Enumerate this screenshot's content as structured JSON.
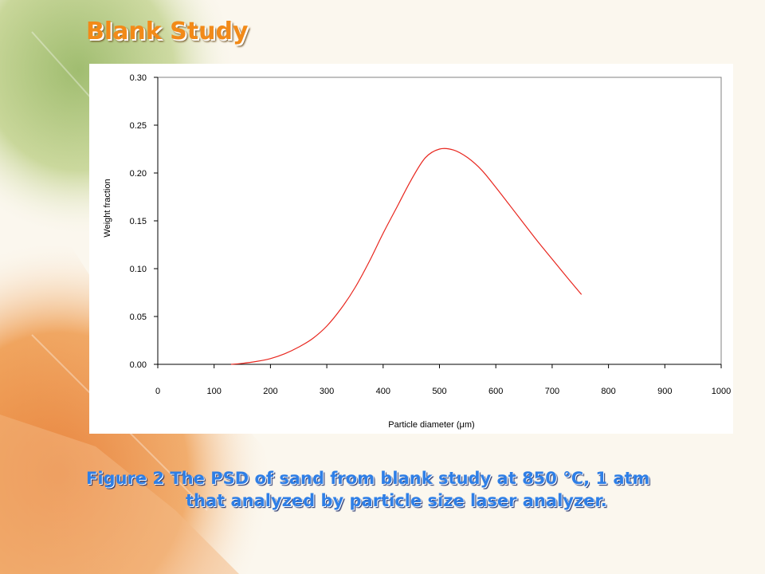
{
  "slide": {
    "title": "Blank Study",
    "caption_line1": "Figure 2 The PSD of sand from blank study at 850 °C, 1 atm",
    "caption_line2": "that analyzed by particle size laser analyzer."
  },
  "colors": {
    "title": "#f28a18",
    "caption": "#2f7fe6",
    "line": "#e8261e",
    "axis": "#000000"
  },
  "chart_data": {
    "type": "line",
    "title": "",
    "xlabel": "Particle diameter (μm)",
    "ylabel": "Weight fraction",
    "xlim": [
      0,
      1000
    ],
    "ylim": [
      0,
      0.3
    ],
    "xticks": [
      "0",
      "100",
      "200",
      "300",
      "400",
      "500",
      "600",
      "700",
      "800",
      "900",
      "1000"
    ],
    "yticks": [
      "0.00",
      "0.05",
      "0.10",
      "0.15",
      "0.20",
      "0.25",
      "0.30"
    ],
    "grid": false,
    "legend": "none",
    "series": [
      {
        "x": [
          130,
          150,
          175,
          200,
          225,
          250,
          275,
          300,
          325,
          350,
          375,
          400,
          425,
          450,
          475,
          500,
          525,
          550,
          575,
          600,
          625,
          650,
          675,
          700,
          725,
          752
        ],
        "y": [
          0.0,
          0.001,
          0.003,
          0.006,
          0.011,
          0.018,
          0.027,
          0.04,
          0.058,
          0.08,
          0.107,
          0.137,
          0.165,
          0.193,
          0.216,
          0.225,
          0.224,
          0.216,
          0.203,
          0.185,
          0.166,
          0.147,
          0.128,
          0.11,
          0.092,
          0.073
        ]
      }
    ]
  }
}
